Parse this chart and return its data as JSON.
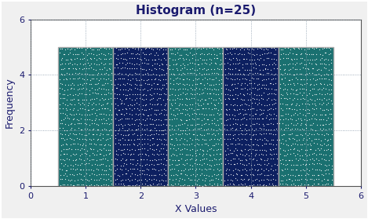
{
  "title": "Histogram (n=25)",
  "xlabel": "X Values",
  "ylabel": "Frequency",
  "xlim": [
    0,
    6
  ],
  "ylim": [
    0,
    6
  ],
  "xticks": [
    0,
    1,
    2,
    3,
    4,
    5,
    6
  ],
  "yticks": [
    0,
    2,
    4,
    6
  ],
  "bar_centers": [
    1,
    2,
    3,
    4,
    5
  ],
  "bar_heights": [
    5,
    5,
    5,
    5,
    5
  ],
  "bar_width": 1.0,
  "bar_colors": [
    "#1a7070",
    "#0d2060",
    "#1a7070",
    "#0d2060",
    "#1a7070"
  ],
  "edge_color": "#aaaaaa",
  "fig_bg": "#f0f0f0",
  "plot_bg": "#ffffff",
  "title_color": "#1a1a6e",
  "label_color": "#1a1a6e",
  "tick_color": "#1a1a6e",
  "grid_color": "#8899aa",
  "dot_color": "#ffffff",
  "dot_size": 0.8,
  "dots_per_bar": 500,
  "title_fontsize": 11,
  "label_fontsize": 9,
  "tick_fontsize": 8
}
